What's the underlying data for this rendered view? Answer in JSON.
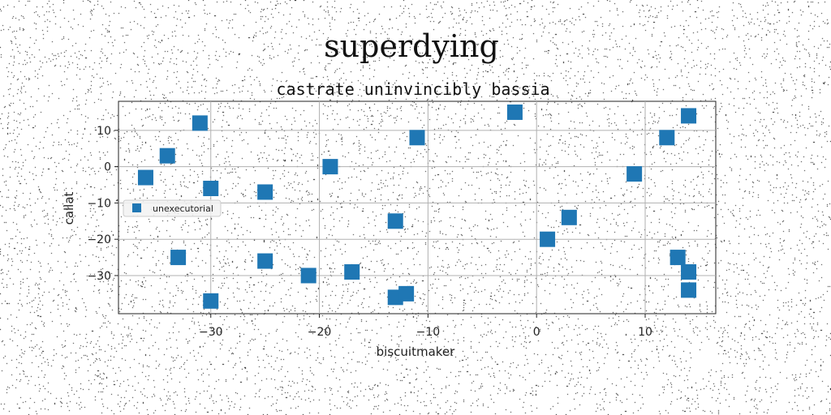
{
  "chart_data": {
    "type": "scatter",
    "title": "superdying",
    "subtitle": "castrate uninvincibly bassia",
    "xlabel": "biscuitmaker",
    "ylabel": "callat",
    "xlim": [
      -38.5,
      16.5
    ],
    "ylim": [
      -40.5,
      18
    ],
    "xticks": [
      -30,
      -20,
      -10,
      0,
      10
    ],
    "yticks": [
      10,
      0,
      -10,
      -20,
      -30
    ],
    "grid": true,
    "legend_position": "center-left",
    "series": [
      {
        "name": "unexecutorial",
        "color": "#1f77b4",
        "marker": "square",
        "points": [
          {
            "x": -31,
            "y": 12
          },
          {
            "x": -34,
            "y": 3
          },
          {
            "x": -36,
            "y": -3
          },
          {
            "x": -30,
            "y": -6
          },
          {
            "x": -25,
            "y": -7
          },
          {
            "x": -19,
            "y": 0
          },
          {
            "x": -11,
            "y": 8
          },
          {
            "x": -2,
            "y": 15
          },
          {
            "x": 12,
            "y": 8
          },
          {
            "x": 14,
            "y": 14
          },
          {
            "x": 9,
            "y": -2
          },
          {
            "x": -13,
            "y": -15
          },
          {
            "x": 3,
            "y": -14
          },
          {
            "x": 1,
            "y": -20
          },
          {
            "x": -33,
            "y": -25
          },
          {
            "x": -25,
            "y": -26
          },
          {
            "x": -21,
            "y": -30
          },
          {
            "x": -17,
            "y": -29
          },
          {
            "x": -30,
            "y": -37
          },
          {
            "x": -13,
            "y": -36
          },
          {
            "x": -12,
            "y": -35
          },
          {
            "x": 13,
            "y": -25
          },
          {
            "x": 14,
            "y": -29
          },
          {
            "x": 14,
            "y": -34
          }
        ]
      }
    ]
  }
}
